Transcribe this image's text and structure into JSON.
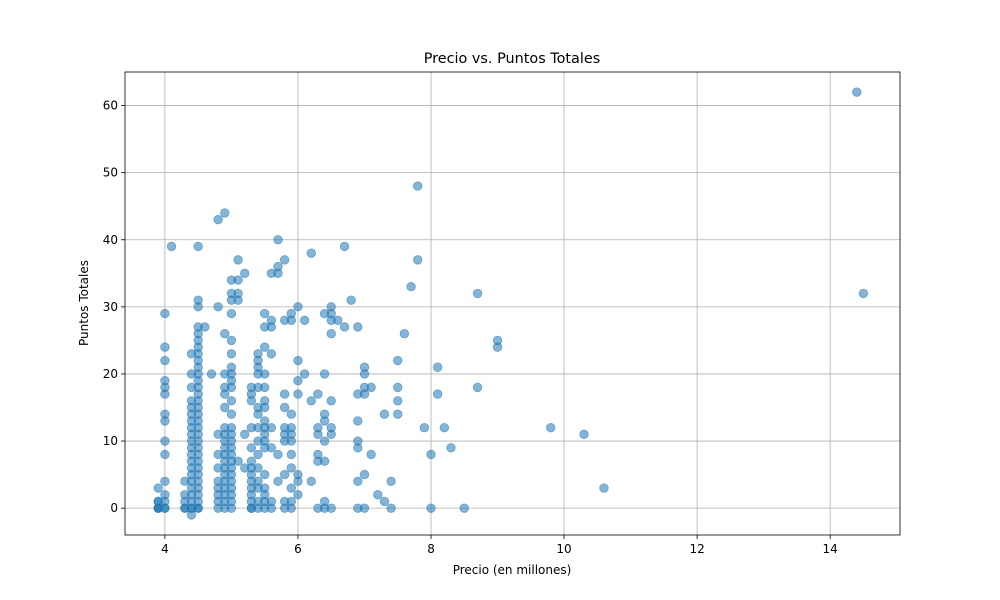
{
  "chart_data": {
    "type": "scatter",
    "title": "Precio vs. Puntos Totales",
    "xlabel": "Precio (en millones)",
    "ylabel": "Puntos Totales",
    "xlim": [
      3.4,
      15.05
    ],
    "ylim": [
      -4,
      65
    ],
    "xticks": [
      4,
      6,
      8,
      10,
      12,
      14
    ],
    "yticks": [
      0,
      10,
      20,
      30,
      40,
      50,
      60
    ],
    "grid": true,
    "legend": "none",
    "point_color": "#1f77b4",
    "point_alpha": 0.55,
    "series": [
      {
        "points": [
          [
            3.9,
            0
          ],
          [
            3.9,
            0
          ],
          [
            3.9,
            0
          ],
          [
            3.9,
            1
          ],
          [
            3.9,
            1
          ],
          [
            3.9,
            3
          ],
          [
            4.0,
            0
          ],
          [
            4.0,
            0
          ],
          [
            4.0,
            1
          ],
          [
            4.0,
            2
          ],
          [
            4.0,
            4
          ],
          [
            4.0,
            8
          ],
          [
            4.0,
            10
          ],
          [
            4.0,
            13
          ],
          [
            4.0,
            14
          ],
          [
            4.0,
            17
          ],
          [
            4.0,
            18
          ],
          [
            4.0,
            19
          ],
          [
            4.0,
            22
          ],
          [
            4.0,
            24
          ],
          [
            4.0,
            29
          ],
          [
            4.1,
            39
          ],
          [
            4.3,
            0
          ],
          [
            4.3,
            0
          ],
          [
            4.3,
            1
          ],
          [
            4.3,
            2
          ],
          [
            4.3,
            4
          ],
          [
            4.4,
            -1
          ],
          [
            4.4,
            0
          ],
          [
            4.4,
            0
          ],
          [
            4.4,
            1
          ],
          [
            4.4,
            2
          ],
          [
            4.4,
            3
          ],
          [
            4.4,
            4
          ],
          [
            4.4,
            5
          ],
          [
            4.4,
            6
          ],
          [
            4.4,
            7
          ],
          [
            4.4,
            8
          ],
          [
            4.4,
            9
          ],
          [
            4.4,
            10
          ],
          [
            4.4,
            11
          ],
          [
            4.4,
            12
          ],
          [
            4.4,
            13
          ],
          [
            4.4,
            14
          ],
          [
            4.4,
            15
          ],
          [
            4.4,
            16
          ],
          [
            4.4,
            18
          ],
          [
            4.4,
            20
          ],
          [
            4.4,
            23
          ],
          [
            4.5,
            0
          ],
          [
            4.5,
            0
          ],
          [
            4.5,
            1
          ],
          [
            4.5,
            2
          ],
          [
            4.5,
            3
          ],
          [
            4.5,
            4
          ],
          [
            4.5,
            5
          ],
          [
            4.5,
            6
          ],
          [
            4.5,
            7
          ],
          [
            4.5,
            8
          ],
          [
            4.5,
            9
          ],
          [
            4.5,
            10
          ],
          [
            4.5,
            11
          ],
          [
            4.5,
            12
          ],
          [
            4.5,
            13
          ],
          [
            4.5,
            14
          ],
          [
            4.5,
            15
          ],
          [
            4.5,
            16
          ],
          [
            4.5,
            17
          ],
          [
            4.5,
            18
          ],
          [
            4.5,
            19
          ],
          [
            4.5,
            20
          ],
          [
            4.5,
            21
          ],
          [
            4.5,
            22
          ],
          [
            4.5,
            23
          ],
          [
            4.5,
            24
          ],
          [
            4.5,
            25
          ],
          [
            4.5,
            26
          ],
          [
            4.5,
            27
          ],
          [
            4.5,
            30
          ],
          [
            4.5,
            31
          ],
          [
            4.5,
            39
          ],
          [
            4.6,
            27
          ],
          [
            4.7,
            20
          ],
          [
            4.8,
            0
          ],
          [
            4.8,
            1
          ],
          [
            4.8,
            2
          ],
          [
            4.8,
            3
          ],
          [
            4.8,
            4
          ],
          [
            4.8,
            6
          ],
          [
            4.8,
            8
          ],
          [
            4.8,
            11
          ],
          [
            4.8,
            30
          ],
          [
            4.8,
            43
          ],
          [
            4.9,
            0
          ],
          [
            4.9,
            1
          ],
          [
            4.9,
            2
          ],
          [
            4.9,
            3
          ],
          [
            4.9,
            4
          ],
          [
            4.9,
            5
          ],
          [
            4.9,
            6
          ],
          [
            4.9,
            7
          ],
          [
            4.9,
            8
          ],
          [
            4.9,
            9
          ],
          [
            4.9,
            10
          ],
          [
            4.9,
            11
          ],
          [
            4.9,
            12
          ],
          [
            4.9,
            15
          ],
          [
            4.9,
            17
          ],
          [
            4.9,
            18
          ],
          [
            4.9,
            20
          ],
          [
            4.9,
            26
          ],
          [
            4.9,
            44
          ],
          [
            5.0,
            0
          ],
          [
            5.0,
            1
          ],
          [
            5.0,
            2
          ],
          [
            5.0,
            3
          ],
          [
            5.0,
            4
          ],
          [
            5.0,
            5
          ],
          [
            5.0,
            6
          ],
          [
            5.0,
            7
          ],
          [
            5.0,
            8
          ],
          [
            5.0,
            9
          ],
          [
            5.0,
            10
          ],
          [
            5.0,
            11
          ],
          [
            5.0,
            12
          ],
          [
            5.0,
            14
          ],
          [
            5.0,
            16
          ],
          [
            5.0,
            18
          ],
          [
            5.0,
            19
          ],
          [
            5.0,
            20
          ],
          [
            5.0,
            21
          ],
          [
            5.0,
            23
          ],
          [
            5.0,
            25
          ],
          [
            5.0,
            29
          ],
          [
            5.0,
            31
          ],
          [
            5.0,
            32
          ],
          [
            5.0,
            34
          ],
          [
            5.1,
            7
          ],
          [
            5.1,
            31
          ],
          [
            5.1,
            32
          ],
          [
            5.1,
            34
          ],
          [
            5.1,
            37
          ],
          [
            5.2,
            6
          ],
          [
            5.2,
            11
          ],
          [
            5.2,
            35
          ],
          [
            5.3,
            0
          ],
          [
            5.3,
            0
          ],
          [
            5.3,
            1
          ],
          [
            5.3,
            2
          ],
          [
            5.3,
            3
          ],
          [
            5.3,
            4
          ],
          [
            5.3,
            5
          ],
          [
            5.3,
            6
          ],
          [
            5.3,
            7
          ],
          [
            5.3,
            9
          ],
          [
            5.3,
            12
          ],
          [
            5.3,
            16
          ],
          [
            5.3,
            17
          ],
          [
            5.3,
            18
          ],
          [
            5.4,
            0
          ],
          [
            5.4,
            1
          ],
          [
            5.4,
            3
          ],
          [
            5.4,
            4
          ],
          [
            5.4,
            6
          ],
          [
            5.4,
            8
          ],
          [
            5.4,
            10
          ],
          [
            5.4,
            12
          ],
          [
            5.4,
            14
          ],
          [
            5.4,
            15
          ],
          [
            5.4,
            18
          ],
          [
            5.4,
            20
          ],
          [
            5.4,
            21
          ],
          [
            5.4,
            22
          ],
          [
            5.4,
            23
          ],
          [
            5.5,
            0
          ],
          [
            5.5,
            1
          ],
          [
            5.5,
            2
          ],
          [
            5.5,
            3
          ],
          [
            5.5,
            5
          ],
          [
            5.5,
            9
          ],
          [
            5.5,
            10
          ],
          [
            5.5,
            11
          ],
          [
            5.5,
            12
          ],
          [
            5.5,
            13
          ],
          [
            5.5,
            15
          ],
          [
            5.5,
            16
          ],
          [
            5.5,
            18
          ],
          [
            5.5,
            20
          ],
          [
            5.5,
            24
          ],
          [
            5.5,
            27
          ],
          [
            5.5,
            29
          ],
          [
            5.6,
            0
          ],
          [
            5.6,
            1
          ],
          [
            5.6,
            9
          ],
          [
            5.6,
            12
          ],
          [
            5.6,
            23
          ],
          [
            5.6,
            27
          ],
          [
            5.6,
            28
          ],
          [
            5.6,
            35
          ],
          [
            5.7,
            4
          ],
          [
            5.7,
            8
          ],
          [
            5.7,
            35
          ],
          [
            5.7,
            36
          ],
          [
            5.7,
            40
          ],
          [
            5.8,
            0
          ],
          [
            5.8,
            1
          ],
          [
            5.8,
            5
          ],
          [
            5.8,
            10
          ],
          [
            5.8,
            11
          ],
          [
            5.8,
            12
          ],
          [
            5.8,
            15
          ],
          [
            5.8,
            17
          ],
          [
            5.8,
            28
          ],
          [
            5.8,
            37
          ],
          [
            5.9,
            0
          ],
          [
            5.9,
            1
          ],
          [
            5.9,
            3
          ],
          [
            5.9,
            6
          ],
          [
            5.9,
            8
          ],
          [
            5.9,
            10
          ],
          [
            5.9,
            11
          ],
          [
            5.9,
            12
          ],
          [
            5.9,
            14
          ],
          [
            5.9,
            28
          ],
          [
            5.9,
            29
          ],
          [
            6.0,
            2
          ],
          [
            6.0,
            4
          ],
          [
            6.0,
            5
          ],
          [
            6.0,
            17
          ],
          [
            6.0,
            19
          ],
          [
            6.0,
            22
          ],
          [
            6.0,
            30
          ],
          [
            6.1,
            20
          ],
          [
            6.1,
            28
          ],
          [
            6.2,
            4
          ],
          [
            6.2,
            16
          ],
          [
            6.2,
            38
          ],
          [
            6.3,
            0
          ],
          [
            6.3,
            7
          ],
          [
            6.3,
            8
          ],
          [
            6.3,
            11
          ],
          [
            6.3,
            12
          ],
          [
            6.3,
            17
          ],
          [
            6.4,
            0
          ],
          [
            6.4,
            1
          ],
          [
            6.4,
            7
          ],
          [
            6.4,
            10
          ],
          [
            6.4,
            13
          ],
          [
            6.4,
            14
          ],
          [
            6.4,
            20
          ],
          [
            6.4,
            29
          ],
          [
            6.5,
            0
          ],
          [
            6.5,
            11
          ],
          [
            6.5,
            12
          ],
          [
            6.5,
            16
          ],
          [
            6.5,
            26
          ],
          [
            6.5,
            28
          ],
          [
            6.5,
            29
          ],
          [
            6.5,
            30
          ],
          [
            6.6,
            28
          ],
          [
            6.7,
            27
          ],
          [
            6.7,
            39
          ],
          [
            6.8,
            31
          ],
          [
            6.9,
            0
          ],
          [
            6.9,
            4
          ],
          [
            6.9,
            9
          ],
          [
            6.9,
            10
          ],
          [
            6.9,
            13
          ],
          [
            6.9,
            17
          ],
          [
            6.9,
            27
          ],
          [
            7.0,
            0
          ],
          [
            7.0,
            5
          ],
          [
            7.0,
            17
          ],
          [
            7.0,
            18
          ],
          [
            7.0,
            20
          ],
          [
            7.0,
            21
          ],
          [
            7.1,
            8
          ],
          [
            7.1,
            18
          ],
          [
            7.2,
            2
          ],
          [
            7.3,
            1
          ],
          [
            7.3,
            14
          ],
          [
            7.4,
            0
          ],
          [
            7.4,
            4
          ],
          [
            7.5,
            14
          ],
          [
            7.5,
            16
          ],
          [
            7.5,
            18
          ],
          [
            7.5,
            22
          ],
          [
            7.6,
            26
          ],
          [
            7.7,
            33
          ],
          [
            7.8,
            37
          ],
          [
            7.8,
            48
          ],
          [
            7.9,
            12
          ],
          [
            8.0,
            0
          ],
          [
            8.0,
            8
          ],
          [
            8.1,
            17
          ],
          [
            8.1,
            21
          ],
          [
            8.2,
            12
          ],
          [
            8.3,
            9
          ],
          [
            8.5,
            0
          ],
          [
            8.7,
            18
          ],
          [
            8.7,
            32
          ],
          [
            9.0,
            24
          ],
          [
            9.0,
            25
          ],
          [
            9.8,
            12
          ],
          [
            10.3,
            11
          ],
          [
            10.6,
            3
          ],
          [
            14.4,
            62
          ],
          [
            14.5,
            32
          ]
        ]
      }
    ]
  }
}
